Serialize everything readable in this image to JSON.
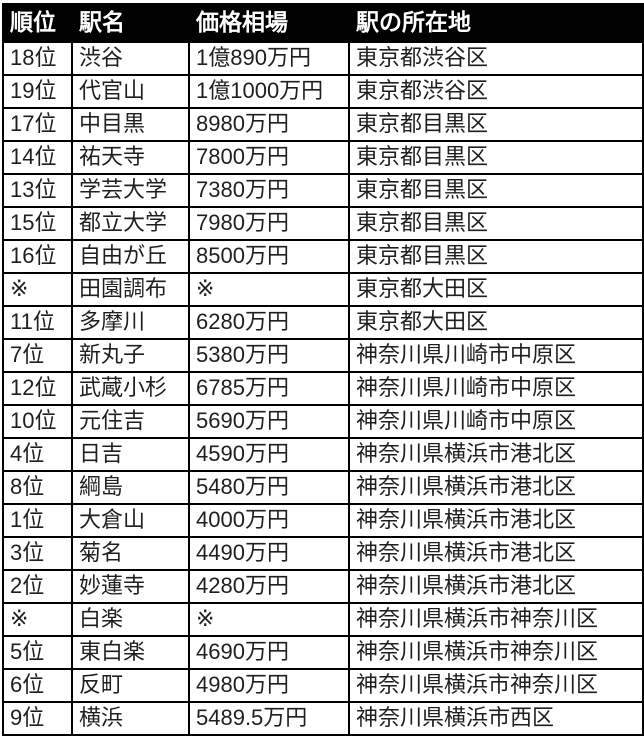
{
  "chart_data": {
    "type": "table",
    "columns": [
      "順位",
      "駅名",
      "価格相場",
      "駅の所在地"
    ],
    "rows": [
      [
        "18位",
        "渋谷",
        "1億890万円",
        "東京都渋谷区"
      ],
      [
        "19位",
        "代官山",
        "1億1000万円",
        "東京都渋谷区"
      ],
      [
        "17位",
        "中目黒",
        "8980万円",
        "東京都目黒区"
      ],
      [
        "14位",
        "祐天寺",
        "7800万円",
        "東京都目黒区"
      ],
      [
        "13位",
        "学芸大学",
        "7380万円",
        "東京都目黒区"
      ],
      [
        "15位",
        "都立大学",
        "7980万円",
        "東京都目黒区"
      ],
      [
        "16位",
        "自由が丘",
        "8500万円",
        "東京都目黒区"
      ],
      [
        "※",
        "田園調布",
        "※",
        "東京都大田区"
      ],
      [
        "11位",
        "多摩川",
        "6280万円",
        "東京都大田区"
      ],
      [
        "7位",
        "新丸子",
        "5380万円",
        "神奈川県川崎市中原区"
      ],
      [
        "12位",
        "武蔵小杉",
        "6785万円",
        "神奈川県川崎市中原区"
      ],
      [
        "10位",
        "元住吉",
        "5690万円",
        "神奈川県川崎市中原区"
      ],
      [
        "4位",
        "日吉",
        "4590万円",
        "神奈川県横浜市港北区"
      ],
      [
        "8位",
        "綱島",
        "5480万円",
        "神奈川県横浜市港北区"
      ],
      [
        "1位",
        "大倉山",
        "4000万円",
        "神奈川県横浜市港北区"
      ],
      [
        "3位",
        "菊名",
        "4490万円",
        "神奈川県横浜市港北区"
      ],
      [
        "2位",
        "妙蓮寺",
        "4280万円",
        "神奈川県横浜市港北区"
      ],
      [
        "※",
        "白楽",
        "※",
        "神奈川県横浜市神奈川区"
      ],
      [
        "5位",
        "東白楽",
        "4690万円",
        "神奈川県横浜市神奈川区"
      ],
      [
        "6位",
        "反町",
        "4980万円",
        "神奈川県横浜市神奈川区"
      ],
      [
        "9位",
        "横浜",
        "5489.5万円",
        "神奈川県横浜市西区"
      ]
    ]
  },
  "colors": {
    "header_bg": "#000000",
    "header_text": "#ffffff",
    "border": "#000000",
    "cell_bg": "#ffffff",
    "text": "#1f1f1f"
  }
}
